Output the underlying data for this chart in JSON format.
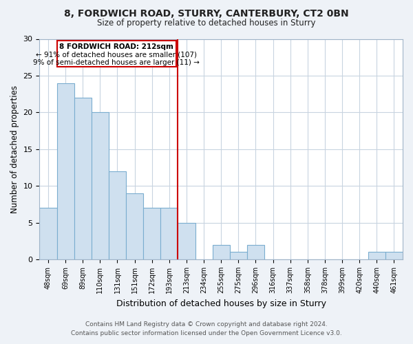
{
  "title": "8, FORDWICH ROAD, STURRY, CANTERBURY, CT2 0BN",
  "subtitle": "Size of property relative to detached houses in Sturry",
  "xlabel": "Distribution of detached houses by size in Sturry",
  "ylabel": "Number of detached properties",
  "categories": [
    "48sqm",
    "69sqm",
    "89sqm",
    "110sqm",
    "131sqm",
    "151sqm",
    "172sqm",
    "193sqm",
    "213sqm",
    "234sqm",
    "255sqm",
    "275sqm",
    "296sqm",
    "316sqm",
    "337sqm",
    "358sqm",
    "378sqm",
    "399sqm",
    "420sqm",
    "440sqm",
    "461sqm"
  ],
  "values": [
    7,
    24,
    22,
    20,
    12,
    9,
    7,
    7,
    5,
    0,
    2,
    1,
    2,
    0,
    0,
    0,
    0,
    0,
    0,
    1,
    1
  ],
  "bar_color": "#cfe0ef",
  "bar_edge_color": "#7aadcf",
  "property_line_x": 8.5,
  "property_line_color": "#cc0000",
  "annotation_box_color": "#cc0000",
  "annotation_text_line1": "8 FORDWICH ROAD: 212sqm",
  "annotation_text_line2": "← 91% of detached houses are smaller (107)",
  "annotation_text_line3": "9% of semi-detached houses are larger (11) →",
  "ylim": [
    0,
    30
  ],
  "yticks": [
    0,
    5,
    10,
    15,
    20,
    25,
    30
  ],
  "footer_line1": "Contains HM Land Registry data © Crown copyright and database right 2024.",
  "footer_line2": "Contains public sector information licensed under the Open Government Licence v3.0.",
  "bg_color": "#eef2f7",
  "plot_bg_color": "#ffffff",
  "grid_color": "#c8d4e0"
}
